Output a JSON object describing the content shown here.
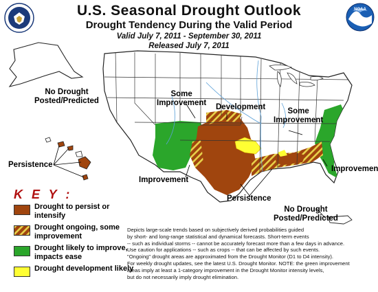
{
  "header": {
    "title": "U.S. Seasonal Drought Outlook",
    "subtitle": "Drought Tendency During the Valid Period",
    "valid": "Valid July 7, 2011 - September 30, 2011",
    "released": "Released July 7, 2011"
  },
  "logos": {
    "left": "U.S. Department of Commerce seal",
    "right_text": "NOAA"
  },
  "map_labels": {
    "alaska": "No Drought\nPosted/Predicted",
    "hawaii": "Persistence",
    "west_improvement": "Some\nImprovement",
    "development": "Development",
    "east_improvement": "Some\nImprovement",
    "southeast": "Improvement",
    "texas": "Improvement",
    "gulf": "Persistence",
    "puerto_rico": "No Drought\nPosted/Predicted"
  },
  "key": {
    "title": "K E Y :",
    "items": [
      {
        "label": "Drought to persist or intensify",
        "color": "#a0450e",
        "pattern": "solid"
      },
      {
        "label": "Drought ongoing, some improvement",
        "color": "#a0450e",
        "pattern": "hatched"
      },
      {
        "label": "Drought likely to improve, impacts ease",
        "color": "#2ba62b",
        "pattern": "solid"
      },
      {
        "label": "Drought development likely",
        "color": "#ffff33",
        "pattern": "solid"
      }
    ]
  },
  "disclaimer": "Depicts large-scale trends based on subjectively derived probabilities guided\nby short- and long-range statistical and dynamical forecasts. Short-term events\n-- such as individual storms -- cannot be accurately forecast more than a few days in advance.\nUse caution for applications -- such as crops -- that can be affected by such events.\n\"Ongoing\" drought areas are approximated from the Drought Monitor (D1 to D4 intensity).\nFor weekly drought updates, see the latest U.S. Drought Monitor. NOTE: the green improvement\nareas imply at least a 1-category improvement in the Drought Monitor intensity levels,\nbut do not necessarily imply drought elimination.",
  "colors": {
    "persist": "#a0450e",
    "improve": "#2ba62b",
    "develop": "#ffff33",
    "land": "#ffffff",
    "state_border": "#333333",
    "river": "#5aa0d8"
  }
}
